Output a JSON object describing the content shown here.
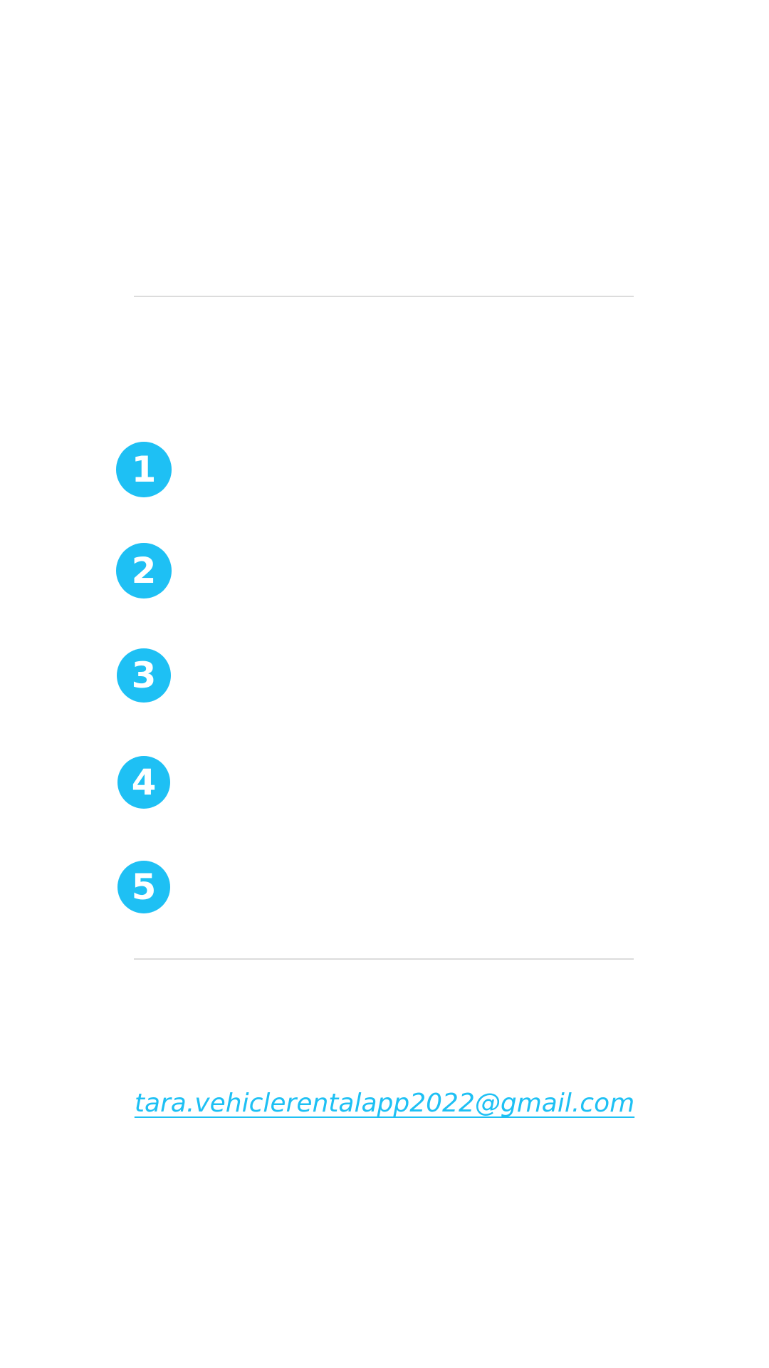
{
  "colors": {
    "accent": "#1ec0f4",
    "divider": "#dcdcdc",
    "background": "#ffffff"
  },
  "steps": [
    {
      "number": "1"
    },
    {
      "number": "2"
    },
    {
      "number": "3"
    },
    {
      "number": "4"
    },
    {
      "number": "5"
    }
  ],
  "contact": {
    "email": "tara.vehiclerentalapp2022@gmail.com"
  }
}
